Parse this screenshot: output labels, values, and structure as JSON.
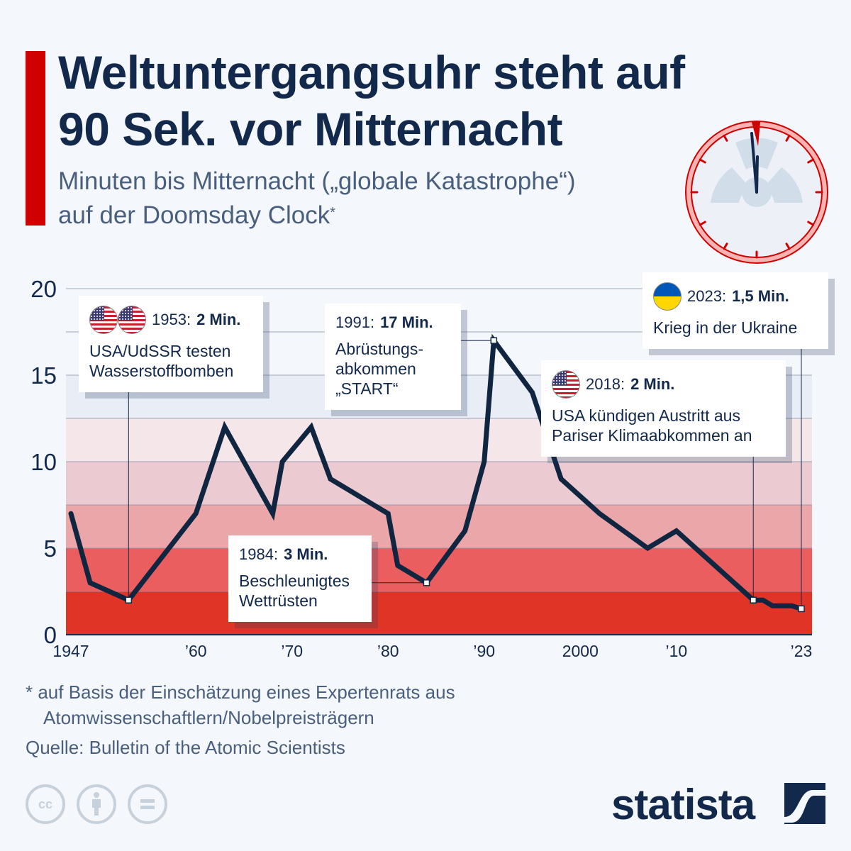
{
  "header": {
    "title_line1": "Weltuntergangsuhr steht auf",
    "title_line2": "90 Sek. vor Mitternacht",
    "subtitle_line1": "Minuten bis Mitternacht („globale Katastrophe“)",
    "subtitle_line2": "auf der Doomsday Clock",
    "subtitle_marker": "*",
    "accent_color": "#d10000"
  },
  "clock_icon": "doomsday-clock-icon",
  "chart_data": {
    "type": "line",
    "title": "Weltuntergangsuhr steht auf 90 Sek. vor Mitternacht",
    "subtitle": "Minuten bis Mitternacht („globale Katastrophe“) auf der Doomsday Clock",
    "xlabel": "",
    "ylabel": "Minuten bis Mitternacht",
    "xlim": [
      1947,
      2023
    ],
    "ylim": [
      0,
      20
    ],
    "yticks": [
      0,
      5,
      10,
      15,
      20
    ],
    "ytick_labels": [
      "0",
      "5",
      "10",
      "15",
      "20"
    ],
    "gridlines": [
      0,
      2.5,
      5,
      7.5,
      10,
      12.5,
      15,
      17.5,
      20
    ],
    "xticks": [
      1947,
      1960,
      1970,
      1980,
      1990,
      2000,
      2010,
      2023
    ],
    "xtick_labels": [
      "1947",
      "’60",
      "’70",
      "’80",
      "’90",
      "2000",
      "’10",
      "’23"
    ],
    "bands": [
      {
        "from": 0,
        "to": 2.5,
        "color": "#e03427"
      },
      {
        "from": 2.5,
        "to": 5,
        "color": "#eb5e5f"
      },
      {
        "from": 5,
        "to": 7.5,
        "color": "#eba6aa"
      },
      {
        "from": 7.5,
        "to": 10,
        "color": "#ebcbd1"
      },
      {
        "from": 10,
        "to": 12.5,
        "color": "#f5e6ea"
      },
      {
        "from": 12.5,
        "to": 15,
        "color": "#e9eef6"
      }
    ],
    "series": [
      {
        "name": "Minuten bis Mitternacht",
        "color": "#0f2540",
        "x": [
          1947,
          1949,
          1953,
          1960,
          1963,
          1968,
          1969,
          1972,
          1974,
          1980,
          1981,
          1984,
          1988,
          1990,
          1991,
          1995,
          1998,
          2002,
          2007,
          2010,
          2018,
          2019,
          2020,
          2021,
          2022,
          2023
        ],
        "values": [
          7,
          3,
          2,
          7,
          12,
          7,
          10,
          12,
          9,
          7,
          4,
          3,
          6,
          10,
          17,
          14,
          9,
          7,
          5,
          6,
          2,
          2,
          1.67,
          1.67,
          1.67,
          1.5
        ]
      }
    ],
    "annotations": [
      {
        "year": 1953,
        "value": 2,
        "label_year": "1953:",
        "label_value": "2 Min.",
        "text": [
          "USA/UdSSR testen",
          "Wasserstoffbomben"
        ],
        "flags": [
          "us-flag-icon",
          "ussr-flag-icon"
        ]
      },
      {
        "year": 1984,
        "value": 3,
        "label_year": "1984:",
        "label_value": "3 Min.",
        "text": [
          "Beschleunigtes",
          "Wettrüsten"
        ],
        "flags": []
      },
      {
        "year": 1991,
        "value": 17,
        "label_year": "1991:",
        "label_value": "17 Min.",
        "text": [
          "Abrüstungs-",
          "abkommen",
          "„START“"
        ],
        "flags": []
      },
      {
        "year": 2018,
        "value": 2,
        "label_year": "2018:",
        "label_value": "2 Min.",
        "text": [
          "USA kündigen Austritt aus",
          "Pariser Klimaabkommen an"
        ],
        "flags": [
          "us-flag-icon"
        ]
      },
      {
        "year": 2023,
        "value": 1.5,
        "label_year": "2023:",
        "label_value": "1,5 Min.",
        "text": [
          "Krieg in der Ukraine"
        ],
        "flags": [
          "ukraine-flag-icon"
        ]
      }
    ]
  },
  "footer": {
    "footnote_line1": "* auf Basis der Einschätzung eines Expertenrats aus",
    "footnote_line2": "Atomwissenschaftlern/Nobelpreisträgern",
    "source": "Quelle: Bulletin of the Atomic Scientists",
    "license_icons": [
      "cc-icon",
      "attribution-icon",
      "no-derivatives-icon"
    ],
    "cc_label": "cc",
    "brand": "statista"
  }
}
